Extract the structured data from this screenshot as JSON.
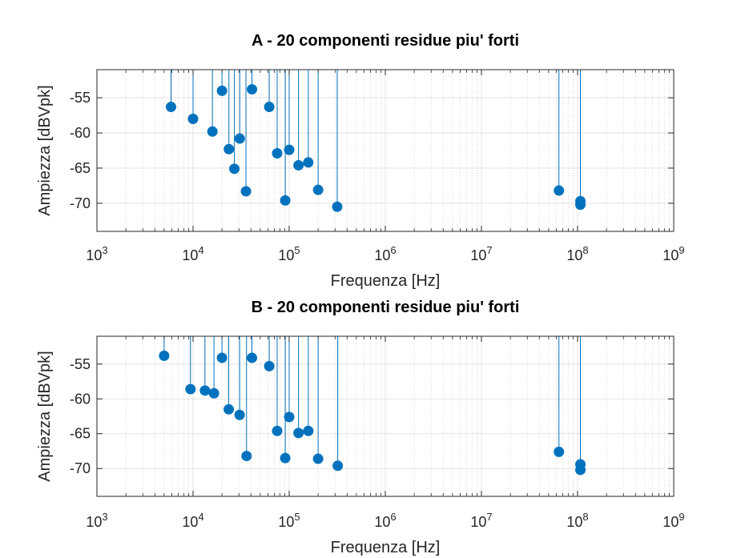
{
  "chart_data": [
    {
      "type": "stem",
      "title": "A - 20 componenti residue piu' forti",
      "xlabel": "Frequenza [Hz]",
      "ylabel": "Ampiezza [dBVpk]",
      "xscale": "log",
      "xlim": [
        1000,
        1000000000
      ],
      "ylim": [
        -74,
        -51
      ],
      "yticks": [
        -55,
        -60,
        -65,
        -70
      ],
      "xtick_base": "10",
      "xtick_exponents": [
        "3",
        "4",
        "5",
        "6",
        "7",
        "8",
        "9"
      ],
      "grid": true,
      "color": "#0072BD",
      "points": [
        {
          "x": 5900,
          "y": -56.3
        },
        {
          "x": 10000,
          "y": -58.0
        },
        {
          "x": 15900,
          "y": -59.8
        },
        {
          "x": 20000,
          "y": -54.0
        },
        {
          "x": 23600,
          "y": -62.3
        },
        {
          "x": 26900,
          "y": -65.1
        },
        {
          "x": 30600,
          "y": -60.8
        },
        {
          "x": 35500,
          "y": -68.3
        },
        {
          "x": 41000,
          "y": -53.8
        },
        {
          "x": 62000,
          "y": -56.3
        },
        {
          "x": 75000,
          "y": -62.9
        },
        {
          "x": 91000,
          "y": -69.6
        },
        {
          "x": 100000,
          "y": -62.4
        },
        {
          "x": 125000,
          "y": -64.6
        },
        {
          "x": 158000,
          "y": -64.2
        },
        {
          "x": 200000,
          "y": -68.1
        },
        {
          "x": 316000,
          "y": -70.5
        },
        {
          "x": 64000000,
          "y": -68.2
        },
        {
          "x": 107000000,
          "y": -69.7
        },
        {
          "x": 107000000,
          "y": -70.2
        }
      ]
    },
    {
      "type": "stem",
      "title": "B - 20 componenti residue piu' forti",
      "xlabel": "Frequenza [Hz]",
      "ylabel": "Ampiezza [dBVpk]",
      "xscale": "log",
      "xlim": [
        1000,
        1000000000
      ],
      "ylim": [
        -74,
        -51
      ],
      "yticks": [
        -55,
        -60,
        -65,
        -70
      ],
      "xtick_base": "10",
      "xtick_exponents": [
        "3",
        "4",
        "5",
        "6",
        "7",
        "8",
        "9"
      ],
      "grid": true,
      "color": "#0072BD",
      "points": [
        {
          "x": 5000,
          "y": -53.8
        },
        {
          "x": 9400,
          "y": -58.6
        },
        {
          "x": 13300,
          "y": -58.8
        },
        {
          "x": 16500,
          "y": -59.2
        },
        {
          "x": 20000,
          "y": -54.1
        },
        {
          "x": 23500,
          "y": -61.5
        },
        {
          "x": 30500,
          "y": -62.3
        },
        {
          "x": 36000,
          "y": -68.2
        },
        {
          "x": 41000,
          "y": -54.1
        },
        {
          "x": 62000,
          "y": -55.3
        },
        {
          "x": 75000,
          "y": -64.6
        },
        {
          "x": 91000,
          "y": -68.5
        },
        {
          "x": 100000,
          "y": -62.6
        },
        {
          "x": 125000,
          "y": -64.9
        },
        {
          "x": 158000,
          "y": -64.6
        },
        {
          "x": 200000,
          "y": -68.6
        },
        {
          "x": 320000,
          "y": -69.6
        },
        {
          "x": 64000000,
          "y": -67.6
        },
        {
          "x": 107000000,
          "y": -69.4
        },
        {
          "x": 107000000,
          "y": -70.2
        }
      ]
    }
  ]
}
